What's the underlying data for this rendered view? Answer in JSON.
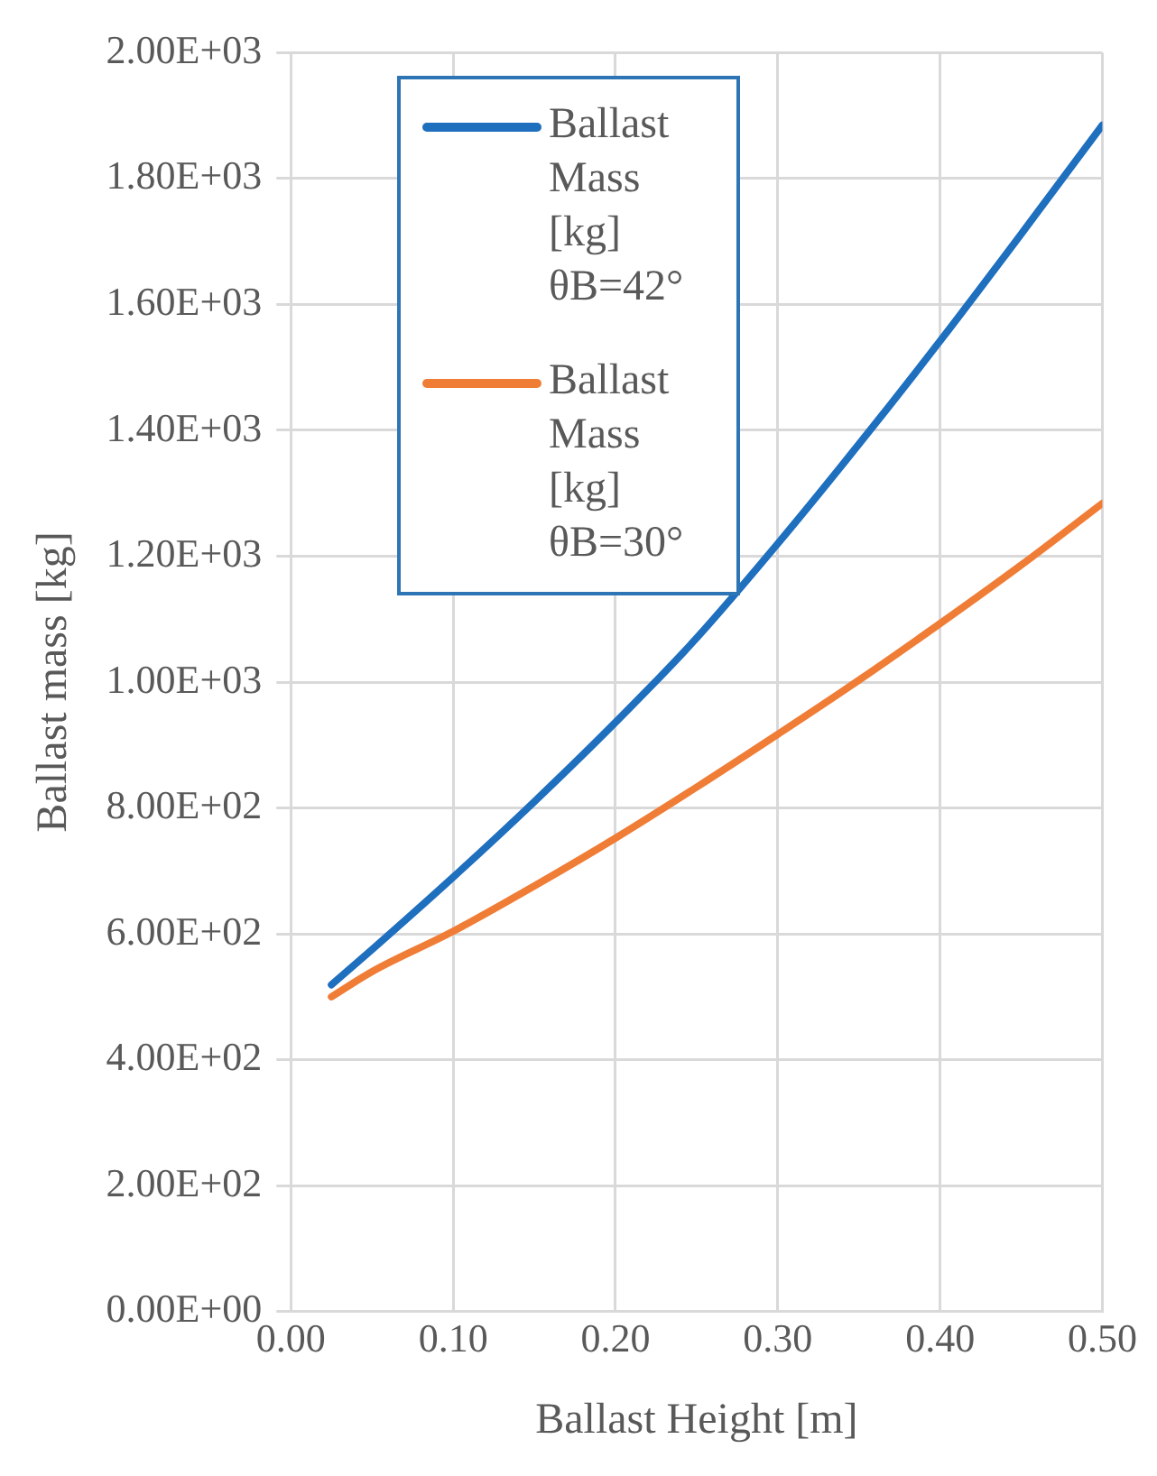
{
  "chart_data": {
    "type": "line",
    "xlabel": "Ballast Height [m]",
    "ylabel": "Ballast mass [kg]",
    "x": [
      0.025,
      0.05,
      0.1,
      0.15,
      0.2,
      0.25,
      0.3,
      0.35,
      0.4,
      0.45,
      0.5
    ],
    "series": [
      {
        "name": "Ballast Mass [kg] θB=42°",
        "color": "#1f6fbf",
        "values": [
          519,
          575,
          690,
          810,
          936,
          1070,
          1220,
          1378,
          1542,
          1712,
          1885
        ]
      },
      {
        "name": "Ballast Mass [kg] θB=30°",
        "color": "#f07d36",
        "values": [
          500,
          540,
          604,
          676,
          752,
          833,
          917,
          1003,
          1093,
          1186,
          1284
        ]
      }
    ],
    "xlim": [
      0,
      0.5
    ],
    "xticks": [
      {
        "value": 0,
        "label": "0.00"
      },
      {
        "value": 0.1,
        "label": "0.10"
      },
      {
        "value": 0.2,
        "label": "0.20"
      },
      {
        "value": 0.3,
        "label": "0.30"
      },
      {
        "value": 0.4,
        "label": "0.40"
      },
      {
        "value": 0.5,
        "label": "0.50"
      }
    ],
    "ylim": [
      0,
      2000
    ],
    "yticks": [
      {
        "value": 0,
        "label": "0.00E+00"
      },
      {
        "value": 200,
        "label": "2.00E+02"
      },
      {
        "value": 400,
        "label": "4.00E+02"
      },
      {
        "value": 600,
        "label": "6.00E+02"
      },
      {
        "value": 800,
        "label": "8.00E+02"
      },
      {
        "value": 1000,
        "label": "1.00E+03"
      },
      {
        "value": 1200,
        "label": "1.20E+03"
      },
      {
        "value": 1400,
        "label": "1.40E+03"
      },
      {
        "value": 1600,
        "label": "1.60E+03"
      },
      {
        "value": 1800,
        "label": "1.80E+03"
      },
      {
        "value": 2000,
        "label": "2.00E+03"
      }
    ],
    "grid": true,
    "legend": "top left",
    "marker": "none",
    "line_style": "solid"
  }
}
